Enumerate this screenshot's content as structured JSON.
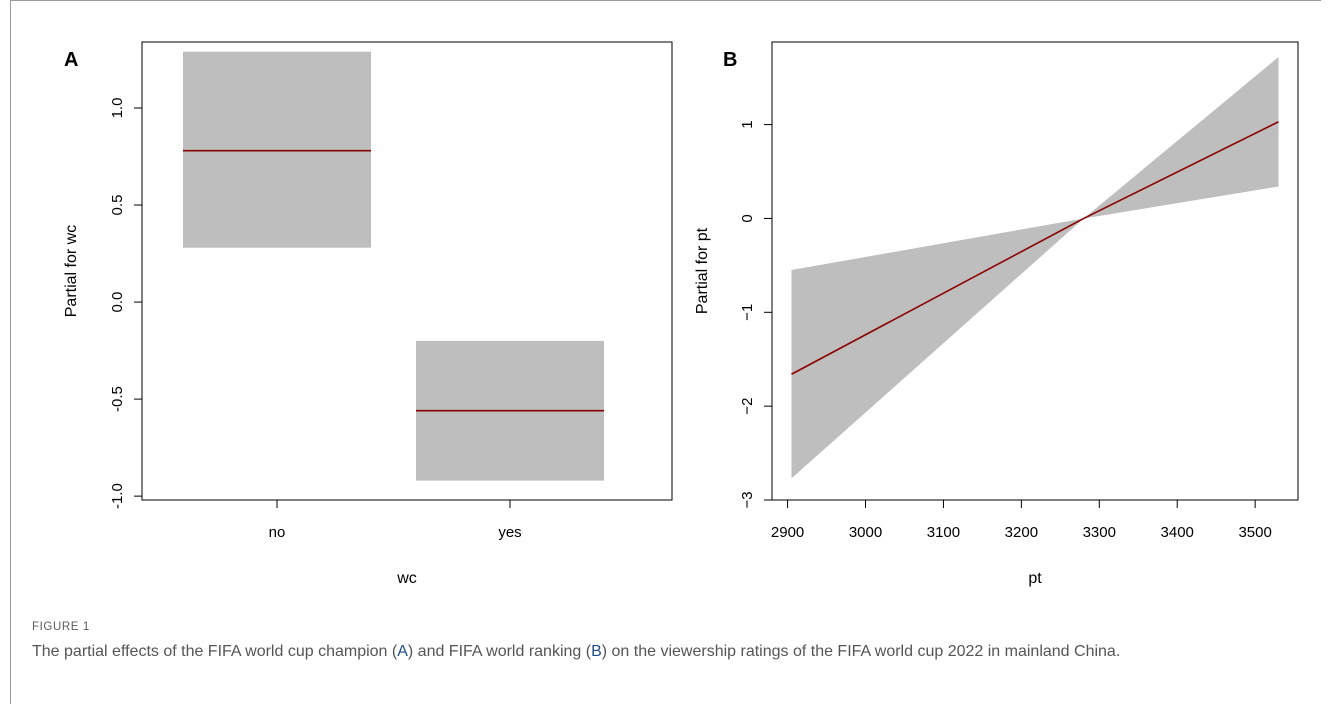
{
  "figure_label": "FIGURE 1",
  "caption": {
    "part1": "The partial effects of the FIFA world cup champion (",
    "ref_a": "A",
    "part2": ") and FIFA world ranking (",
    "ref_b": "B",
    "part3": ") on the viewership ratings of the FIFA world cup 2022 in mainland China."
  },
  "colors": {
    "band": "#bebebe",
    "line": "#8b0000",
    "axis": "#000000"
  },
  "chart_data": [
    {
      "panel": "A",
      "type": "bar",
      "xlabel": "wc",
      "ylabel": "Partial for wc",
      "categories": [
        "no",
        "yes"
      ],
      "fit": [
        0.78,
        -0.56
      ],
      "lower": [
        0.28,
        -0.92
      ],
      "upper": [
        1.29,
        -0.2
      ],
      "ylim": [
        -1.02,
        1.34
      ],
      "yticks": [
        -1.0,
        -0.5,
        0.0,
        0.5,
        1.0
      ],
      "ytick_labels": [
        "-1.0",
        "-0.5",
        "0.0",
        "0.5",
        "1.0"
      ]
    },
    {
      "panel": "B",
      "type": "area",
      "xlabel": "pt",
      "ylabel": "Partial for pt",
      "x": [
        2905,
        3280,
        3530
      ],
      "fit": [
        -1.66,
        0.0,
        1.03
      ],
      "lower": [
        -2.77,
        0.0,
        0.34
      ],
      "upper": [
        -0.55,
        0.0,
        1.72
      ],
      "xlim": [
        2880,
        3555
      ],
      "ylim": [
        -3.0,
        1.88
      ],
      "xticks": [
        2900,
        3000,
        3100,
        3200,
        3300,
        3400,
        3500
      ],
      "xtick_labels": [
        "2900",
        "3000",
        "3100",
        "3200",
        "3300",
        "3400",
        "3500"
      ],
      "yticks": [
        -3,
        -2,
        -1,
        0,
        1
      ],
      "ytick_labels": [
        "−3",
        "−2",
        "−1",
        "0",
        "1"
      ]
    }
  ]
}
